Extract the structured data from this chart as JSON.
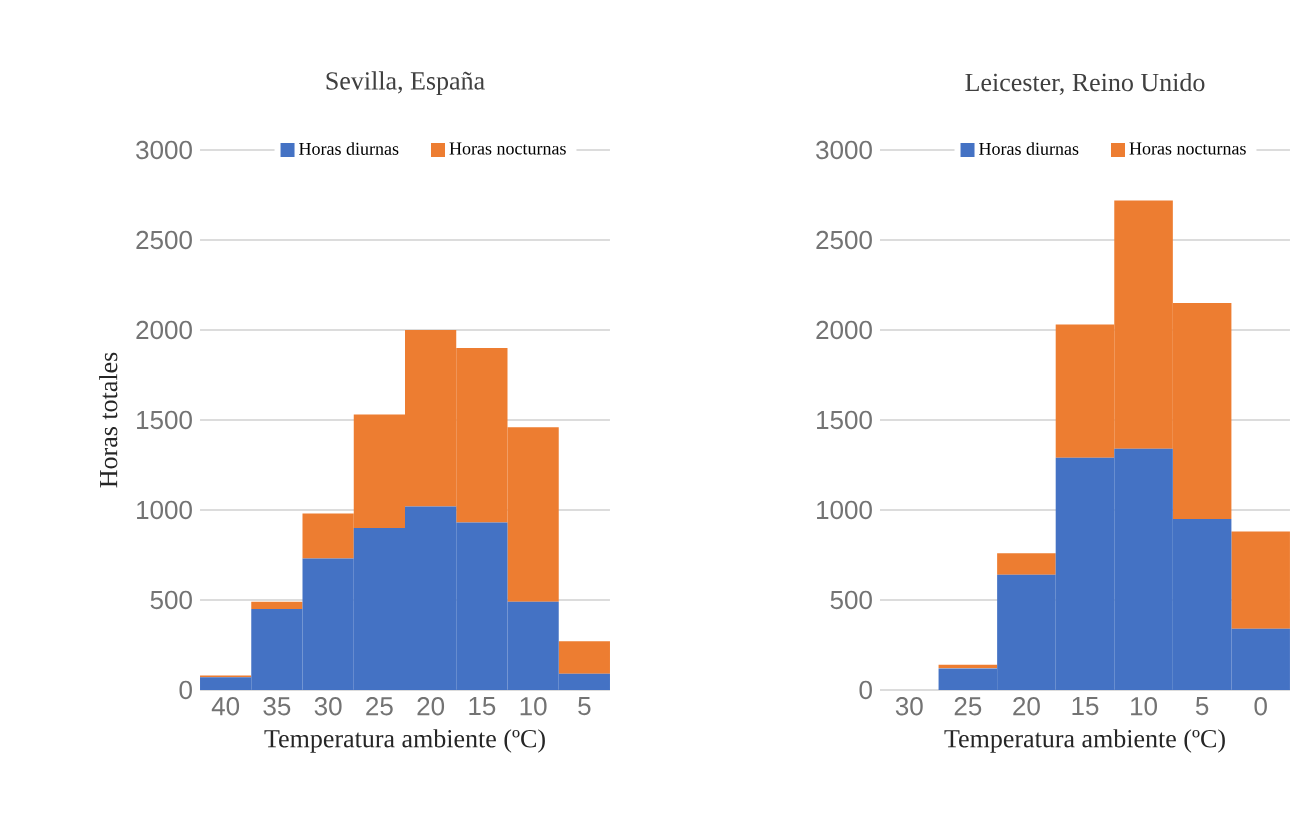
{
  "chart_data": [
    {
      "type": "bar",
      "title": "Sevilla, España",
      "ylabel": "Horas totales",
      "xlabel": "Temperatura ambiente (ºC)",
      "stacked": true,
      "grid": "y",
      "legend": "top",
      "categories": [
        "40",
        "35",
        "30",
        "25",
        "20",
        "15",
        "10",
        "5"
      ],
      "ylim": [
        0,
        3000
      ],
      "yticks": [
        0,
        500,
        1000,
        1500,
        2000,
        2500,
        3000
      ],
      "series": [
        {
          "name": "Horas diurnas",
          "color": "#4472c4",
          "values": [
            70,
            450,
            730,
            900,
            1020,
            930,
            490,
            90
          ]
        },
        {
          "name": "Horas nocturnas",
          "color": "#ed7d31",
          "values": [
            10,
            40,
            250,
            630,
            980,
            970,
            970,
            180
          ]
        }
      ]
    },
    {
      "type": "bar",
      "title": "Leicester, Reino Unido",
      "xlabel": "Temperatura ambiente (ºC)",
      "stacked": true,
      "grid": "y",
      "legend": "top",
      "categories": [
        "30",
        "25",
        "20",
        "15",
        "10",
        "5",
        "0"
      ],
      "ylim": [
        0,
        3000
      ],
      "yticks": [
        0,
        500,
        1000,
        1500,
        2000,
        2500,
        3000
      ],
      "series": [
        {
          "name": "Horas diurnas",
          "color": "#4472c4",
          "values": [
            null,
            120,
            640,
            1290,
            1340,
            950,
            340
          ]
        },
        {
          "name": "Horas nocturnas",
          "color": "#ed7d31",
          "values": [
            null,
            20,
            120,
            740,
            1380,
            1200,
            540
          ]
        }
      ]
    }
  ]
}
